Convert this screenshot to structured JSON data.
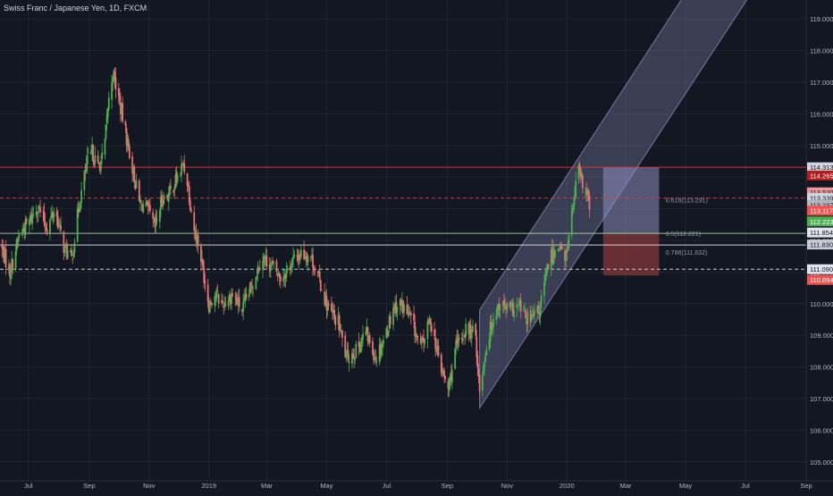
{
  "colors": {
    "background": "#131722",
    "grid": "#1f2430",
    "axis_text": "#b2b5be",
    "up": "#4caf50",
    "down": "#e57373",
    "channel": "#9598c9",
    "target_zone": "#9598c9",
    "stop_zone": "#8b3a3a",
    "resistance": "#e53935",
    "support": "#a5d6a7"
  },
  "chart_data": {
    "type": "candlestick",
    "title": "Swiss Franc / Japanese Yen, 1D, FXCM",
    "x_ticks": [
      {
        "label": "Jul",
        "date": "2018-07-01"
      },
      {
        "label": "Sep",
        "date": "2018-09-01"
      },
      {
        "label": "Nov",
        "date": "2018-11-01"
      },
      {
        "label": "2019",
        "date": "2019-01-01"
      },
      {
        "label": "Mar",
        "date": "2019-03-01"
      },
      {
        "label": "May",
        "date": "2019-05-01"
      },
      {
        "label": "Jul",
        "date": "2019-07-01"
      },
      {
        "label": "Sep",
        "date": "2019-09-01"
      },
      {
        "label": "Nov",
        "date": "2019-11-01"
      },
      {
        "label": "2020",
        "date": "2020-01-01"
      },
      {
        "label": "Mar",
        "date": "2020-03-01"
      },
      {
        "label": "May",
        "date": "2020-05-01"
      },
      {
        "label": "Jul",
        "date": "2020-07-01"
      },
      {
        "label": "Sep",
        "date": "2020-09-01"
      }
    ],
    "xlim": [
      "2018-06-02",
      "2020-09-01"
    ],
    "y_ticks": [
      105.0,
      106.0,
      107.0,
      108.0,
      109.0,
      110.0,
      111.0,
      112.0,
      113.0,
      114.0,
      115.0,
      116.0,
      117.0,
      118.0,
      119.0
    ],
    "ylim": [
      104.4,
      119.6
    ],
    "price_path": [
      [
        "2018-06-02",
        111.9
      ],
      [
        "2018-06-12",
        111.0
      ],
      [
        "2018-06-22",
        112.2
      ],
      [
        "2018-07-02",
        112.6
      ],
      [
        "2018-07-10",
        113.1
      ],
      [
        "2018-07-20",
        112.4
      ],
      [
        "2018-07-28",
        113.0
      ],
      [
        "2018-08-06",
        111.8
      ],
      [
        "2018-08-14",
        111.4
      ],
      [
        "2018-08-22",
        113.2
      ],
      [
        "2018-08-30",
        114.5
      ],
      [
        "2018-09-04",
        114.8
      ],
      [
        "2018-09-10",
        114.3
      ],
      [
        "2018-09-16",
        114.7
      ],
      [
        "2018-09-20",
        116.2
      ],
      [
        "2018-09-25",
        117.3
      ],
      [
        "2018-10-01",
        116.5
      ],
      [
        "2018-10-08",
        115.4
      ],
      [
        "2018-10-15",
        114.3
      ],
      [
        "2018-10-22",
        113.2
      ],
      [
        "2018-10-30",
        113.0
      ],
      [
        "2018-11-07",
        112.4
      ],
      [
        "2018-11-14",
        113.3
      ],
      [
        "2018-11-22",
        113.5
      ],
      [
        "2018-11-30",
        114.0
      ],
      [
        "2018-12-06",
        114.4
      ],
      [
        "2018-12-10",
        113.9
      ],
      [
        "2018-12-16",
        112.5
      ],
      [
        "2018-12-22",
        111.8
      ],
      [
        "2019-01-01",
        110.0
      ],
      [
        "2019-01-07",
        110.3
      ],
      [
        "2019-01-15",
        110.0
      ],
      [
        "2019-01-25",
        110.3
      ],
      [
        "2019-02-04",
        109.8
      ],
      [
        "2019-02-14",
        110.6
      ],
      [
        "2019-02-24",
        111.5
      ],
      [
        "2019-03-06",
        111.2
      ],
      [
        "2019-03-16",
        110.8
      ],
      [
        "2019-03-26",
        111.3
      ],
      [
        "2019-04-05",
        111.6
      ],
      [
        "2019-04-15",
        111.5
      ],
      [
        "2019-04-25",
        110.6
      ],
      [
        "2019-05-03",
        109.8
      ],
      [
        "2019-05-13",
        109.4
      ],
      [
        "2019-05-21",
        108.3
      ],
      [
        "2019-05-31",
        108.5
      ],
      [
        "2019-06-10",
        109.1
      ],
      [
        "2019-06-20",
        108.3
      ],
      [
        "2019-06-30",
        109.0
      ],
      [
        "2019-07-08",
        109.9
      ],
      [
        "2019-07-16",
        110.0
      ],
      [
        "2019-07-26",
        109.5
      ],
      [
        "2019-08-05",
        108.6
      ],
      [
        "2019-08-15",
        109.5
      ],
      [
        "2019-08-25",
        108.0
      ],
      [
        "2019-09-02",
        107.3
      ],
      [
        "2019-09-10",
        108.6
      ],
      [
        "2019-09-20",
        109.2
      ],
      [
        "2019-09-30",
        109.0
      ],
      [
        "2019-10-04",
        107.2
      ],
      [
        "2019-10-10",
        108.5
      ],
      [
        "2019-10-18",
        109.6
      ],
      [
        "2019-10-24",
        110.0
      ],
      [
        "2019-11-04",
        109.8
      ],
      [
        "2019-11-14",
        109.9
      ],
      [
        "2019-11-24",
        109.4
      ],
      [
        "2019-12-04",
        109.8
      ],
      [
        "2019-12-14",
        111.4
      ],
      [
        "2019-12-24",
        111.9
      ],
      [
        "2019-12-30",
        111.3
      ],
      [
        "2020-01-07",
        113.0
      ],
      [
        "2020-01-12",
        114.2
      ],
      [
        "2020-01-18",
        113.7
      ],
      [
        "2020-01-23",
        113.3
      ],
      [
        "2020-01-27",
        112.4
      ]
    ],
    "channel": {
      "lower": [
        [
          "2019-10-04",
          106.7
        ],
        [
          "2020-08-20",
          121.9
        ]
      ],
      "upper": [
        [
          "2019-10-04",
          109.8
        ],
        [
          "2020-08-20",
          125.1
        ]
      ]
    },
    "target_zone": {
      "start": "2020-02-07",
      "end": "2020-04-04",
      "top": 114.313,
      "bottom": 112.223
    },
    "stop_zone": {
      "start": "2020-02-07",
      "end": "2020-04-04",
      "top": 112.223,
      "bottom": 110.894
    },
    "horizontal_lines": [
      {
        "y": 114.313,
        "style": "solid",
        "color": "#e53935"
      },
      {
        "y": 113.339,
        "style": "dashed",
        "color": "#e53935"
      },
      {
        "y": 112.223,
        "style": "solid",
        "color": "#a5d6a7"
      },
      {
        "y": 111.854,
        "style": "solid",
        "color": "#e0e3eb"
      },
      {
        "y": 111.09,
        "style": "dashed",
        "color": "#e0e3eb"
      }
    ],
    "fib_labels": [
      {
        "text": "0.618(113.291)",
        "y": 113.291
      },
      {
        "text": "0.5(112.221)",
        "y": 112.221
      },
      {
        "text": "0.786(111.632)",
        "y": 111.632
      }
    ],
    "price_labels": [
      {
        "text": "114.313",
        "y": 114.313,
        "bg": "#d1d4dc",
        "fg": "#131722"
      },
      {
        "text": "114.265",
        "y": 114.05,
        "bg": "#b71c1c",
        "fg": "#ffffff"
      },
      {
        "text": "113.520",
        "y": 113.52,
        "bg": "#ef9a9a",
        "fg": "#131722"
      },
      {
        "text": "113.339",
        "y": 113.339,
        "bg": "#d1d4dc",
        "fg": "#131722"
      },
      {
        "text": "113.237",
        "y": 113.12,
        "bg": "#b2b5be",
        "fg": "#131722"
      },
      {
        "text": "113.117",
        "y": 112.94,
        "bg": "#ef5350",
        "fg": "#ffffff"
      },
      {
        "text": "112.223",
        "y": 112.6,
        "bg": "#4caf50",
        "fg": "#ffffff"
      },
      {
        "text": "111.854",
        "y": 112.25,
        "bg": "#e0e3eb",
        "fg": "#131722"
      },
      {
        "text": "111.830",
        "y": 111.87,
        "bg": "#c8cbd3",
        "fg": "#131722"
      },
      {
        "text": "111.090",
        "y": 111.09,
        "bg": "#e0e3eb",
        "fg": "#131722"
      },
      {
        "text": "110.894",
        "y": 110.75,
        "bg": "#ef5350",
        "fg": "#ffffff"
      }
    ]
  }
}
